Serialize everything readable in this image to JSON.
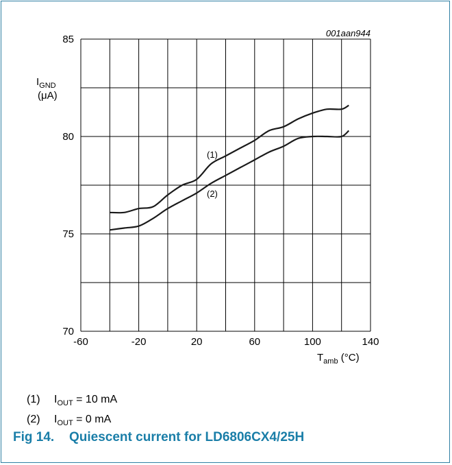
{
  "figure": {
    "code": "001aan944",
    "caption_label": "Fig 14.",
    "caption_text": "Quiescent current for LD6806CX4/25H"
  },
  "legend": [
    {
      "num": "(1)",
      "sym": "I",
      "sub": "OUT",
      "rest": " = 10 mA"
    },
    {
      "num": "(2)",
      "sym": "I",
      "sub": "OUT",
      "rest": " = 0 mA"
    }
  ],
  "colors": {
    "frame": "#2f7fa3",
    "caption": "#1a7ea8",
    "grid": "#000000",
    "curve": "#1a1a1a"
  },
  "chart_data": {
    "type": "line",
    "xlabel": {
      "sym": "T",
      "sub": "amb",
      "unit": " (°C)"
    },
    "ylabel": {
      "sym": "I",
      "sub": "GND",
      "unit": "(μA)"
    },
    "xlim": [
      -60,
      140
    ],
    "ylim": [
      70,
      85
    ],
    "x_ticks": [
      -60,
      -20,
      20,
      60,
      100,
      140
    ],
    "y_ticks": [
      70,
      75,
      80,
      85
    ],
    "x_grid_step": 20,
    "y_grid_step": 2.5,
    "grid": true,
    "series": [
      {
        "name": "(1)",
        "x": [
          -40,
          -30,
          -20,
          -10,
          0,
          10,
          20,
          30,
          40,
          50,
          60,
          70,
          80,
          90,
          100,
          110,
          120,
          125
        ],
        "y": [
          76.1,
          76.1,
          76.3,
          76.4,
          77.0,
          77.5,
          77.8,
          78.6,
          79.0,
          79.4,
          79.8,
          80.3,
          80.5,
          80.9,
          81.2,
          81.4,
          81.4,
          81.6
        ]
      },
      {
        "name": "(2)",
        "x": [
          -40,
          -30,
          -20,
          -10,
          0,
          10,
          20,
          30,
          40,
          50,
          60,
          70,
          80,
          90,
          100,
          110,
          120,
          125
        ],
        "y": [
          75.2,
          75.3,
          75.4,
          75.8,
          76.3,
          76.7,
          77.1,
          77.6,
          78.0,
          78.4,
          78.8,
          79.2,
          79.5,
          79.9,
          80.0,
          80.0,
          80.0,
          80.3
        ]
      }
    ],
    "annotations": [
      {
        "text": "(1)",
        "x": 27,
        "y": 78.9
      },
      {
        "text": "(2)",
        "x": 27,
        "y": 76.9
      }
    ]
  }
}
